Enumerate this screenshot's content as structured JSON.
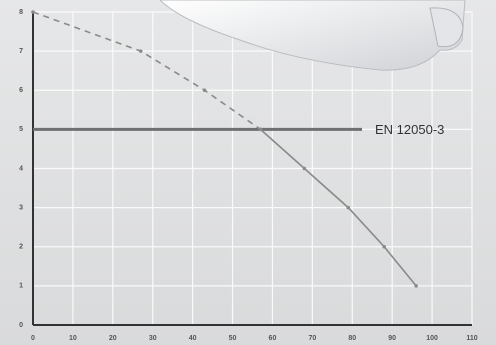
{
  "chart_data": {
    "type": "line",
    "xlim": [
      0,
      110
    ],
    "xticks": [
      0,
      10,
      20,
      30,
      40,
      50,
      60,
      70,
      80,
      90,
      100,
      110
    ],
    "ylim": [
      0,
      8
    ],
    "yticks": [
      0,
      1,
      2,
      3,
      4,
      5,
      6,
      7,
      8
    ],
    "grid": true,
    "series": [
      {
        "color": "#8a8a8a",
        "dashed": true,
        "x": [
          0,
          27,
          43,
          57
        ],
        "values": [
          8,
          7,
          6,
          5
        ]
      },
      {
        "color": "#8a8a8a",
        "dashed": false,
        "x": [
          57,
          68,
          79,
          88,
          96
        ],
        "values": [
          5,
          4,
          3,
          2,
          1
        ]
      }
    ],
    "reference_line": {
      "value": 5,
      "label": "EN 12050-3",
      "color": "#6e7073"
    }
  }
}
